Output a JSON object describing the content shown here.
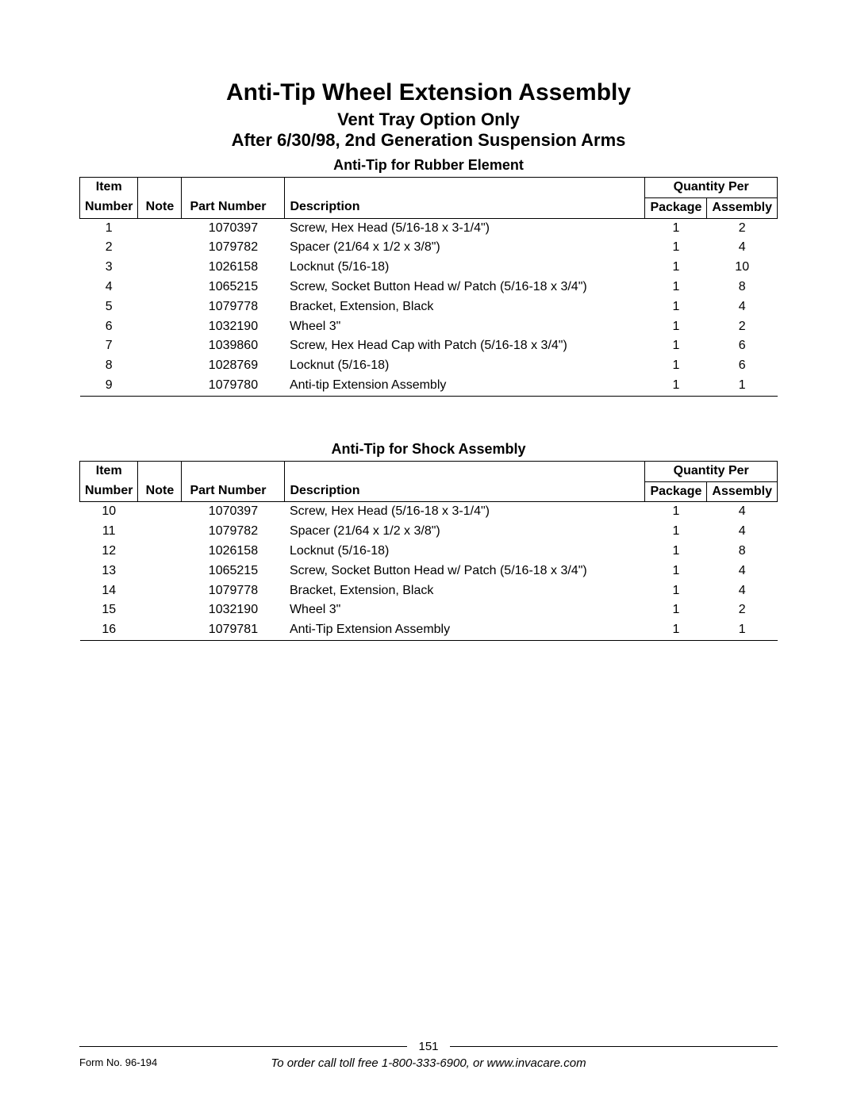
{
  "header": {
    "title": "Anti-Tip Wheel Extension Assembly",
    "subtitle1": "Vent Tray Option Only",
    "subtitle2": "After 6/30/98, 2nd Generation Suspension Arms"
  },
  "tables": {
    "headers": {
      "item": "Item",
      "number": "Number",
      "note": "Note",
      "part_number": "Part Number",
      "description": "Description",
      "quantity_per": "Quantity Per",
      "package": "Package",
      "assembly": "Assembly"
    }
  },
  "section1": {
    "title": "Anti-Tip for Rubber Element",
    "rows": [
      {
        "item": "1",
        "note": "",
        "part": "1070397",
        "desc": "Screw, Hex Head (5/16-18 x 3-1/4\")",
        "pkg": "1",
        "asm": "2"
      },
      {
        "item": "2",
        "note": "",
        "part": "1079782",
        "desc": "Spacer  (21/64 x 1/2 x 3/8\")",
        "pkg": "1",
        "asm": "4"
      },
      {
        "item": "3",
        "note": "",
        "part": "1026158",
        "desc": "Locknut (5/16-18)",
        "pkg": "1",
        "asm": "10"
      },
      {
        "item": "4",
        "note": "",
        "part": "1065215",
        "desc": "Screw, Socket Button Head w/ Patch (5/16-18 x 3/4\")",
        "pkg": "1",
        "asm": "8"
      },
      {
        "item": "5",
        "note": "",
        "part": "1079778",
        "desc": "Bracket, Extension, Black",
        "pkg": "1",
        "asm": "4"
      },
      {
        "item": "6",
        "note": "",
        "part": "1032190",
        "desc": "Wheel  3\"",
        "pkg": "1",
        "asm": "2"
      },
      {
        "item": "7",
        "note": "",
        "part": "1039860",
        "desc": "Screw, Hex Head Cap with Patch  (5/16-18 x 3/4\")",
        "pkg": "1",
        "asm": "6"
      },
      {
        "item": "8",
        "note": "",
        "part": "1028769",
        "desc": "Locknut (5/16-18)",
        "pkg": "1",
        "asm": "6"
      },
      {
        "item": "9",
        "note": "",
        "part": "1079780",
        "desc": "Anti-tip Extension Assembly",
        "pkg": "1",
        "asm": "1"
      }
    ]
  },
  "section2": {
    "title": "Anti-Tip for Shock Assembly",
    "rows": [
      {
        "item": "10",
        "note": "",
        "part": "1070397",
        "desc": "Screw, Hex Head (5/16-18 x 3-1/4\")",
        "pkg": "1",
        "asm": "4"
      },
      {
        "item": "11",
        "note": "",
        "part": "1079782",
        "desc": "Spacer  (21/64 x 1/2 x 3/8\")",
        "pkg": "1",
        "asm": "4"
      },
      {
        "item": "12",
        "note": "",
        "part": "1026158",
        "desc": "Locknut (5/16-18)",
        "pkg": "1",
        "asm": "8"
      },
      {
        "item": "13",
        "note": "",
        "part": "1065215",
        "desc": "Screw, Socket Button Head w/ Patch (5/16-18 x 3/4\")",
        "pkg": "1",
        "asm": "4"
      },
      {
        "item": "14",
        "note": "",
        "part": "1079778",
        "desc": "Bracket, Extension, Black",
        "pkg": "1",
        "asm": "4"
      },
      {
        "item": "15",
        "note": "",
        "part": "1032190",
        "desc": "Wheel  3\"",
        "pkg": "1",
        "asm": "2"
      },
      {
        "item": "16",
        "note": "",
        "part": "1079781",
        "desc": "Anti-Tip Extension Assembly",
        "pkg": "1",
        "asm": "1"
      }
    ]
  },
  "footer": {
    "page_number": "151",
    "form_no": "Form No. 96-194",
    "order_line": "To order call toll free 1-800-333-6900, or www.invacare.com"
  }
}
